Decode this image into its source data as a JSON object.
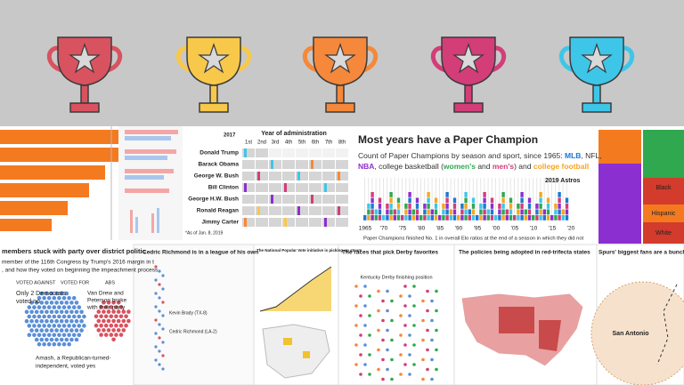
{
  "presidents_panel": {
    "title": "Year of administration",
    "years": [
      "1st",
      "2nd",
      "3rd",
      "4th",
      "5th",
      "6th",
      "7th",
      "8th"
    ],
    "marker": "2017",
    "presidents": [
      "Donald Trump",
      "Barack Obama",
      "George W. Bush",
      "Bill Clinton",
      "George H.W. Bush",
      "Ronald Reagan",
      "Jimmy Carter"
    ],
    "note": "*As of Jan. 8, 2019"
  },
  "paper_champion": {
    "title": "Most years have a Paper Champion",
    "subtitle_line1": [
      "Count of Paper Champions by season and sport, since 1965: ",
      "MLB",
      ", NFL,"
    ],
    "subtitle_line2": [
      "NBA",
      ", college basketball (",
      "women's",
      " and ",
      "men's",
      ") and ",
      "college football"
    ],
    "annotation": "2019 Astros",
    "axis_labels": [
      "1965",
      "'70",
      "'75",
      "'80",
      "'85",
      "'90",
      "'95",
      "'00",
      "'05",
      "'10",
      "'15",
      "'20"
    ],
    "footnote": "Paper Champions finished No. 1 in overall Elo ratios at the end of a season in which they did not"
  },
  "demographics_panel": {
    "labels": [
      "Black",
      "Hispanic",
      "White"
    ]
  },
  "impeachment_panel": {
    "title": "members stuck with party over district politic",
    "subtitle_lines": [
      "member of the 116th Congress by Trump's 2016 margin in t",
      ", and how they voted on beginning the impeachment process"
    ],
    "legend": [
      "VOTED AGAINST",
      "VOTED FOR",
      "ABS"
    ],
    "democrats_note": [
      "Only 2 Democrats",
      "voted no"
    ],
    "party_note": [
      "Van Drew and",
      "Peterson broke",
      "with their party"
    ],
    "amash_note": [
      "Amash, a Republican-turned-",
      "independent, voted yes"
    ]
  },
  "richmond_panel": {
    "title": "Cedric Richmond is in a league of his own",
    "labels": [
      "Kevin Brady (TX-8)",
      "Cedric Richmond (LA-2)"
    ]
  },
  "popular_vote_panel": {
    "title": "The National Popular Vote initiative is picking up steam"
  },
  "derby_panel": {
    "title": "The races that pick Derby favorites",
    "chart_title": "Kentucky Derby finishing position"
  },
  "policies_panel": {
    "title": "The policies being adopted in red-trifecta states"
  },
  "spurs_panel": {
    "title": "Spurs' biggest fans are a bunch of ba",
    "city": "San Antonio"
  }
}
